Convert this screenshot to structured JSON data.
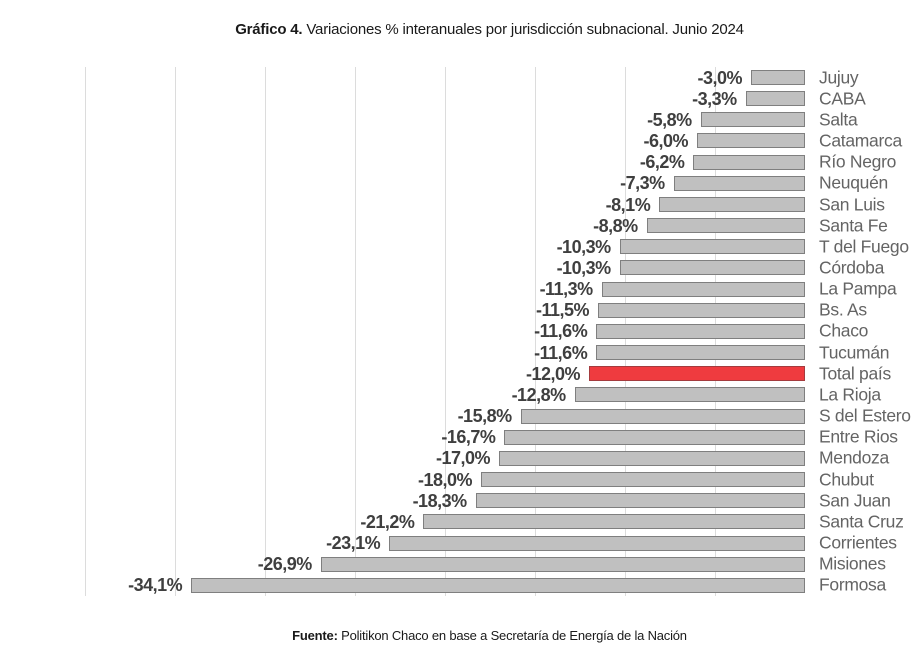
{
  "title": {
    "prefix": "Gráfico 4.",
    "rest": " Variaciones % interanuales por jurisdicción subnacional. Junio 2024"
  },
  "footer": {
    "prefix": "Fuente:",
    "rest": " Politikon Chaco en base a Secretaría de Energía de la Nación"
  },
  "chart_data": {
    "type": "bar",
    "orientation": "horizontal",
    "title": "Gráfico 4. Variaciones % interanuales por jurisdicción subnacional. Junio 2024",
    "source": "Fuente: Politikon Chaco en base a Secretaría de Energía de la Nación",
    "categories": [
      "Jujuy",
      "CABA",
      "Salta",
      "Catamarca",
      "Río Negro",
      "Neuquén",
      "San Luis",
      "Santa Fe",
      "T del Fuego",
      "Córdoba",
      "La Pampa",
      "Bs. As",
      "Chaco",
      "Tucumán",
      "Total país",
      "La Rioja",
      "S del Estero",
      "Entre Rios",
      "Mendoza",
      "Chubut",
      "San Juan",
      "Santa Cruz",
      "Corrientes",
      "Misiones",
      "Formosa"
    ],
    "values": [
      -3.0,
      -3.3,
      -5.8,
      -6.0,
      -6.2,
      -7.3,
      -8.1,
      -8.8,
      -10.3,
      -10.3,
      -11.3,
      -11.5,
      -11.6,
      -11.6,
      -12.0,
      -12.8,
      -15.8,
      -16.7,
      -17.0,
      -18.0,
      -18.3,
      -21.2,
      -23.1,
      -26.9,
      -34.1
    ],
    "value_labels": [
      "-3,0%",
      "-3,3%",
      "-5,8%",
      "-6,0%",
      "-6,2%",
      "-7,3%",
      "-8,1%",
      "-8,8%",
      "-10,3%",
      "-10,3%",
      "-11,3%",
      "-11,5%",
      "-11,6%",
      "-11,6%",
      "-12,0%",
      "-12,8%",
      "-15,8%",
      "-16,7%",
      "-17,0%",
      "-18,0%",
      "-18,3%",
      "-21,2%",
      "-23,1%",
      "-26,9%",
      "-34,1%"
    ],
    "highlight_category": "Total país",
    "xlim": [
      -40,
      0
    ],
    "gridline_step": 5,
    "grid": true,
    "legend": false,
    "axis_tick_labels": false,
    "colors": {
      "bar_fill": "#c0c0c0",
      "bar_border": "#7f7f7f",
      "highlight_fill": "#ef3b3f",
      "highlight_border": "#a43b3e",
      "gridline": "#dcdcdc",
      "value_label": "#3f3f3f",
      "category_label": "#646464"
    }
  }
}
